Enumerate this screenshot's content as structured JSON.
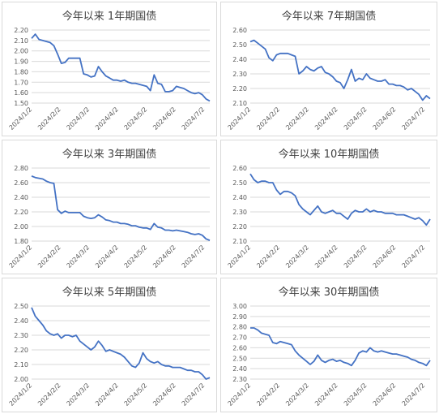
{
  "colors": {
    "line": "#4472C4",
    "grid": "#d9d9d9",
    "text": "#595959"
  },
  "x_tick_labels": [
    "2024/1/2",
    "2024/2/2",
    "2024/3/2",
    "2024/4/2",
    "2024/5/2",
    "2024/6/2",
    "2024/7/2"
  ],
  "chart_data": [
    {
      "type": "line",
      "title": "今年以来 1年期国债",
      "ylim": [
        1.5,
        2.2
      ],
      "yticks": [
        "2.20",
        "2.10",
        "2.00",
        "1.90",
        "1.80",
        "1.70",
        "1.60",
        "1.50"
      ],
      "series": [
        {
          "x": [
            0,
            4,
            8,
            12,
            16,
            20,
            24,
            28,
            32,
            36,
            40,
            44,
            48,
            52,
            56,
            60,
            64,
            68,
            72,
            76,
            80,
            84,
            88,
            92,
            96,
            100,
            104,
            108,
            112,
            116,
            120,
            124,
            128,
            132,
            136,
            140,
            144,
            148,
            152,
            156,
            160,
            164,
            168,
            172,
            176,
            180,
            184,
            188,
            192
          ],
          "values": [
            2.12,
            2.16,
            2.11,
            2.1,
            2.09,
            2.08,
            2.05,
            1.97,
            1.88,
            1.89,
            1.93,
            1.93,
            1.93,
            1.93,
            1.78,
            1.77,
            1.75,
            1.76,
            1.85,
            1.8,
            1.76,
            1.74,
            1.72,
            1.72,
            1.71,
            1.72,
            1.7,
            1.69,
            1.69,
            1.68,
            1.67,
            1.66,
            1.62,
            1.77,
            1.69,
            1.68,
            1.61,
            1.61,
            1.62,
            1.66,
            1.65,
            1.64,
            1.62,
            1.6,
            1.59,
            1.6,
            1.58,
            1.54,
            1.52
          ]
        }
      ]
    },
    {
      "type": "line",
      "title": "今年以来 7年期国债",
      "ylim": [
        2.1,
        2.6
      ],
      "yticks": [
        "2.60",
        "2.50",
        "2.40",
        "2.30",
        "2.20",
        "2.10"
      ],
      "series": [
        {
          "x": [
            0,
            4,
            8,
            12,
            16,
            20,
            24,
            28,
            32,
            36,
            40,
            44,
            48,
            52,
            56,
            60,
            64,
            68,
            72,
            76,
            80,
            84,
            88,
            92,
            96,
            100,
            104,
            108,
            112,
            116,
            120,
            124,
            128,
            132,
            136,
            140,
            144,
            148,
            152,
            156,
            160,
            164,
            168,
            172,
            176,
            180,
            184,
            188,
            192
          ],
          "values": [
            2.52,
            2.53,
            2.51,
            2.49,
            2.47,
            2.41,
            2.39,
            2.43,
            2.44,
            2.44,
            2.44,
            2.43,
            2.42,
            2.3,
            2.32,
            2.35,
            2.33,
            2.32,
            2.34,
            2.35,
            2.31,
            2.3,
            2.28,
            2.25,
            2.24,
            2.2,
            2.26,
            2.33,
            2.25,
            2.27,
            2.26,
            2.3,
            2.27,
            2.26,
            2.25,
            2.25,
            2.26,
            2.23,
            2.23,
            2.22,
            2.22,
            2.21,
            2.19,
            2.2,
            2.18,
            2.16,
            2.12,
            2.15,
            2.13
          ]
        }
      ]
    },
    {
      "type": "line",
      "title": "今年以来 3年期国债",
      "ylim": [
        1.8,
        2.8
      ],
      "yticks": [
        "2.80",
        "2.60",
        "2.40",
        "2.20",
        "2.00",
        "1.80"
      ],
      "series": [
        {
          "x": [
            0,
            4,
            8,
            12,
            16,
            20,
            24,
            28,
            32,
            36,
            40,
            44,
            48,
            52,
            56,
            60,
            64,
            68,
            72,
            76,
            80,
            84,
            88,
            92,
            96,
            100,
            104,
            108,
            112,
            116,
            120,
            124,
            128,
            132,
            136,
            140,
            144,
            148,
            152,
            156,
            160,
            164,
            168,
            172,
            176,
            180,
            184,
            188,
            192
          ],
          "values": [
            2.69,
            2.67,
            2.66,
            2.65,
            2.62,
            2.6,
            2.59,
            2.23,
            2.18,
            2.21,
            2.19,
            2.19,
            2.19,
            2.19,
            2.14,
            2.12,
            2.11,
            2.12,
            2.16,
            2.13,
            2.09,
            2.08,
            2.06,
            2.06,
            2.04,
            2.04,
            2.03,
            2.01,
            2.01,
            1.99,
            1.98,
            1.98,
            1.96,
            2.04,
            1.99,
            1.98,
            1.95,
            1.95,
            1.94,
            1.95,
            1.94,
            1.93,
            1.92,
            1.9,
            1.89,
            1.9,
            1.88,
            1.83,
            1.81
          ]
        }
      ]
    },
    {
      "type": "line",
      "title": "今年以来 10年期国债",
      "ylim": [
        2.1,
        2.6
      ],
      "yticks": [
        "2.60",
        "2.50",
        "2.40",
        "2.30",
        "2.20",
        "2.10"
      ],
      "series": [
        {
          "x": [
            0,
            4,
            8,
            12,
            16,
            20,
            24,
            28,
            32,
            36,
            40,
            44,
            48,
            52,
            56,
            60,
            64,
            68,
            72,
            76,
            80,
            84,
            88,
            92,
            96,
            100,
            104,
            108,
            112,
            116,
            120,
            124,
            128,
            132,
            136,
            140,
            144,
            148,
            152,
            156,
            160,
            164,
            168,
            172,
            176,
            180,
            184,
            188,
            192
          ],
          "values": [
            2.56,
            2.52,
            2.5,
            2.51,
            2.51,
            2.5,
            2.5,
            2.45,
            2.42,
            2.44,
            2.44,
            2.43,
            2.41,
            2.35,
            2.32,
            2.3,
            2.28,
            2.31,
            2.34,
            2.3,
            2.29,
            2.3,
            2.31,
            2.29,
            2.29,
            2.27,
            2.25,
            2.29,
            2.31,
            2.3,
            2.3,
            2.32,
            2.3,
            2.31,
            2.3,
            2.3,
            2.29,
            2.29,
            2.29,
            2.28,
            2.28,
            2.28,
            2.27,
            2.26,
            2.25,
            2.26,
            2.24,
            2.21,
            2.25
          ]
        }
      ]
    },
    {
      "type": "line",
      "title": "今年以来 5年期国债",
      "ylim": [
        2.0,
        2.5
      ],
      "yticks": [
        "2.50",
        "2.40",
        "2.30",
        "2.20",
        "2.10",
        "2.00"
      ],
      "series": [
        {
          "x": [
            0,
            4,
            8,
            12,
            16,
            20,
            24,
            28,
            32,
            36,
            40,
            44,
            48,
            52,
            56,
            60,
            64,
            68,
            72,
            76,
            80,
            84,
            88,
            92,
            96,
            100,
            104,
            108,
            112,
            116,
            120,
            124,
            128,
            132,
            136,
            140,
            144,
            148,
            152,
            156,
            160,
            164,
            168,
            172,
            176,
            180,
            184,
            188,
            192
          ],
          "values": [
            2.49,
            2.43,
            2.4,
            2.37,
            2.33,
            2.31,
            2.3,
            2.31,
            2.28,
            2.3,
            2.3,
            2.29,
            2.3,
            2.26,
            2.24,
            2.22,
            2.2,
            2.22,
            2.26,
            2.23,
            2.19,
            2.2,
            2.19,
            2.18,
            2.17,
            2.15,
            2.12,
            2.09,
            2.08,
            2.11,
            2.18,
            2.14,
            2.12,
            2.11,
            2.12,
            2.1,
            2.09,
            2.09,
            2.08,
            2.08,
            2.08,
            2.07,
            2.06,
            2.06,
            2.05,
            2.05,
            2.03,
            2.0,
            2.01
          ]
        }
      ]
    },
    {
      "type": "line",
      "title": "今年以来 30年期国债",
      "ylim": [
        2.3,
        3.0
      ],
      "yticks": [
        "3.00",
        "2.90",
        "2.80",
        "2.70",
        "2.60",
        "2.50",
        "2.40",
        "2.30"
      ],
      "series": [
        {
          "x": [
            0,
            4,
            8,
            12,
            16,
            20,
            24,
            28,
            32,
            36,
            40,
            44,
            48,
            52,
            56,
            60,
            64,
            68,
            72,
            76,
            80,
            84,
            88,
            92,
            96,
            100,
            104,
            108,
            112,
            116,
            120,
            124,
            128,
            132,
            136,
            140,
            144,
            148,
            152,
            156,
            160,
            164,
            168,
            172,
            176,
            180,
            184,
            188,
            192
          ],
          "values": [
            2.79,
            2.79,
            2.77,
            2.74,
            2.73,
            2.72,
            2.65,
            2.64,
            2.66,
            2.65,
            2.64,
            2.63,
            2.57,
            2.53,
            2.5,
            2.47,
            2.44,
            2.47,
            2.53,
            2.48,
            2.46,
            2.48,
            2.49,
            2.47,
            2.48,
            2.46,
            2.45,
            2.43,
            2.48,
            2.55,
            2.57,
            2.56,
            2.6,
            2.57,
            2.56,
            2.57,
            2.56,
            2.55,
            2.54,
            2.54,
            2.53,
            2.52,
            2.51,
            2.49,
            2.48,
            2.46,
            2.45,
            2.43,
            2.48
          ]
        }
      ]
    }
  ]
}
